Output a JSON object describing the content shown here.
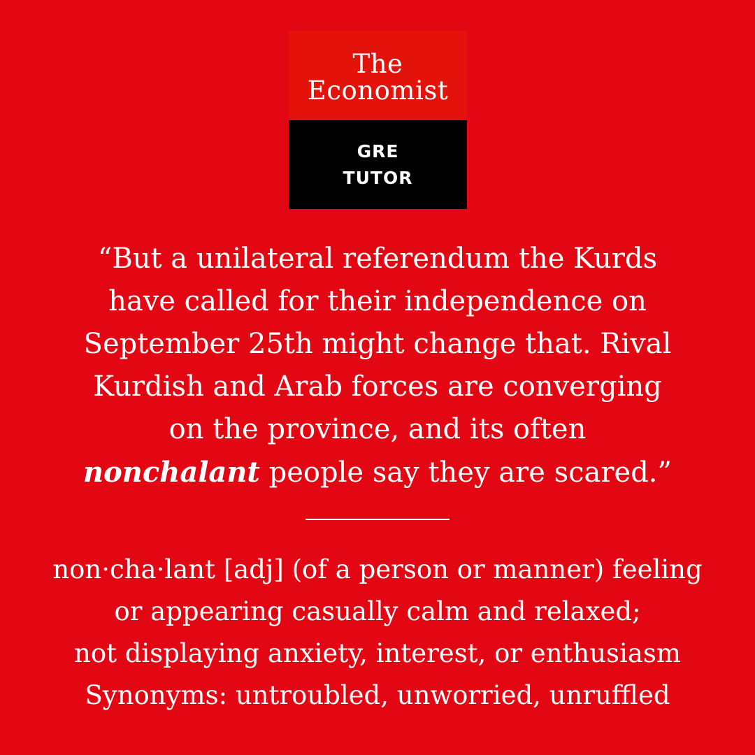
{
  "logo": {
    "line1": "The",
    "line2": "Economist",
    "sub_line1": "GRE",
    "sub_line2": "TUTOR"
  },
  "quote": {
    "line1": "“But a unilateral referendum the Kurds",
    "line2": "have called for their independence on",
    "line3": "September 25th might change that. Rival",
    "line4": "Kurdish and Arab forces are converging",
    "line5": "on the province, and its often",
    "keyword": "nonchalant",
    "line6_rest": " people say they are scared.”"
  },
  "definition": {
    "line1": "non·cha·lant [adj] (of a person or manner) feeling",
    "line2": "or appearing casually calm and relaxed;",
    "line3": "not displaying anxiety, interest, or enthusiasm",
    "line4": "Synonyms: untroubled, unworried, unruffled"
  },
  "colors": {
    "background": "#e20712",
    "logo_red": "#e3120b",
    "logo_black": "#000000",
    "text": "#ffffff"
  }
}
